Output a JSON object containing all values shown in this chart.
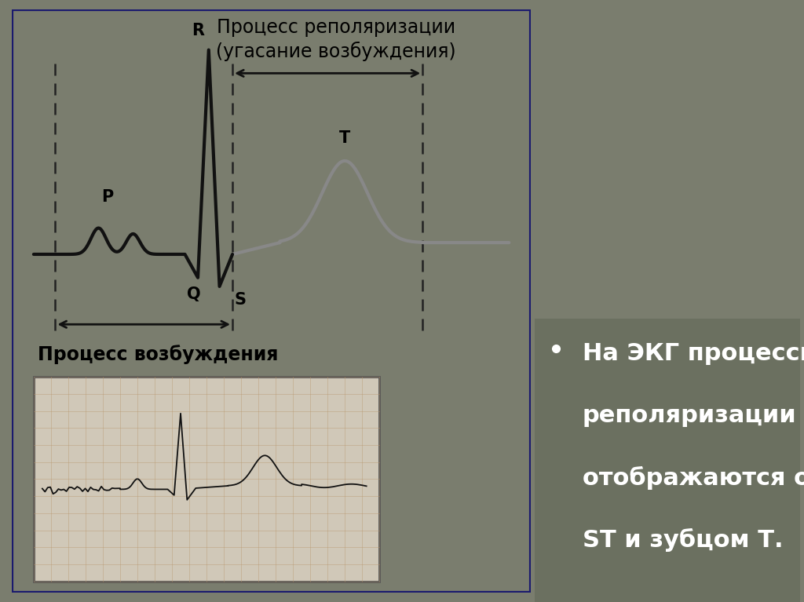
{
  "bg_color": "#7a7d6e",
  "slide_bg": "#dcdbd3",
  "slide_border": "#1a1a6e",
  "title_top": "Процесс реполяризации",
  "title_top2": "(угасание возбуждения)",
  "label_bottom": "Процесс возбуждения",
  "bullet_text_lines": [
    "На ЭКГ процессы",
    "реполяризации",
    "отображаются отрезком",
    "ST и зубцом Т."
  ],
  "font_size_title": 17,
  "font_size_label": 14,
  "font_size_ecg_label": 15,
  "font_size_bullet": 22,
  "ecg_black_color": "#111111",
  "ecg_gray_color": "#888888",
  "dashed_color": "#222222",
  "arrow_color": "#111111",
  "text_box_color": "#6b7060"
}
